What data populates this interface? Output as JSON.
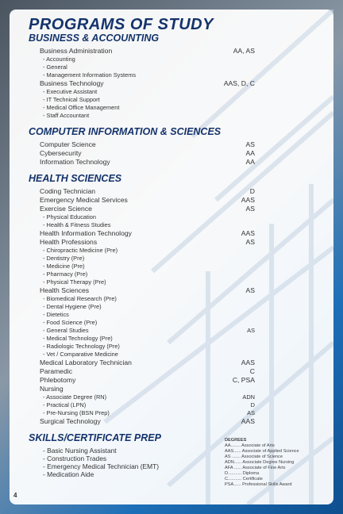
{
  "header": {
    "title": "PROGRAMS OF STUDY"
  },
  "sections": [
    {
      "heading": "BUSINESS & ACCOUNTING",
      "items": [
        {
          "name": "Business Administration",
          "degrees": "AA, AS",
          "sub": [
            {
              "name": "- Accounting"
            },
            {
              "name": "- General"
            },
            {
              "name": "- Management Information Systems"
            }
          ]
        },
        {
          "name": "Business Technology",
          "degrees": "AAS, D, C",
          "sub": [
            {
              "name": "- Executive Assistant"
            },
            {
              "name": "- IT Technical Support"
            },
            {
              "name": "- Medical Office Management"
            },
            {
              "name": "- Staff Accountant"
            }
          ]
        }
      ]
    },
    {
      "heading": "COMPUTER INFORMATION & SCIENCES",
      "items": [
        {
          "name": "Computer Science",
          "degrees": "AS"
        },
        {
          "name": "Cybersecurity",
          "degrees": "AA"
        },
        {
          "name": "Information Technology",
          "degrees": "AA"
        }
      ]
    },
    {
      "heading": "HEALTH SCIENCES",
      "items": [
        {
          "name": "Coding Technician",
          "degrees": "D"
        },
        {
          "name": "Emergency Medical Services",
          "degrees": "AAS"
        },
        {
          "name": "Exercise Science",
          "degrees": "AS",
          "sub": [
            {
              "name": "- Physical Education"
            },
            {
              "name": "- Health & Fitness Studies"
            }
          ]
        },
        {
          "name": "Health Information Technology",
          "degrees": "AAS"
        },
        {
          "name": "Health Professions",
          "degrees": "AS",
          "sub": [
            {
              "name": "- Chiropractic Medicine (Pre)"
            },
            {
              "name": "- Dentistry (Pre)"
            },
            {
              "name": "- Medicine (Pre)"
            },
            {
              "name": "- Pharmacy (Pre)"
            },
            {
              "name": "- Physical Therapy (Pre)"
            }
          ]
        },
        {
          "name": "Health Sciences",
          "degrees": "AS",
          "sub": [
            {
              "name": "- Biomedical Research (Pre)"
            },
            {
              "name": "- Dental Hygiene (Pre)"
            },
            {
              "name": "- Dietetics"
            },
            {
              "name": "- Food Science (Pre)"
            },
            {
              "name": "- General Studies",
              "degrees": "AS"
            },
            {
              "name": "- Medical Technology (Pre)"
            },
            {
              "name": "- Radiologic Technology (Pre)"
            },
            {
              "name": "- Vet / Comparative Medicine"
            }
          ]
        },
        {
          "name": "Medical Laboratory Technician",
          "degrees": "AAS"
        },
        {
          "name": "Paramedic",
          "degrees": "C"
        },
        {
          "name": "Phlebotomy",
          "degrees": "C, PSA"
        },
        {
          "name": "Nursing",
          "sub": [
            {
              "name": "- Associate Degree (RN)",
              "degrees": "ADN"
            },
            {
              "name": "- Practical (LPN)",
              "degrees": "D"
            },
            {
              "name": "- Pre-Nursing (BSN Prep)",
              "degrees": "AS"
            }
          ]
        },
        {
          "name": "Surgical Technology",
          "degrees": "AAS"
        }
      ]
    },
    {
      "heading": "SKILLS/CERTIFICATE PREP",
      "items": [
        {
          "name": "- Basic Nursing Assistant"
        },
        {
          "name": "- Construction Trades"
        },
        {
          "name": "- Emergency Medical Technician (EMT)"
        },
        {
          "name": "- Medication Aide"
        }
      ]
    }
  ],
  "legend": {
    "title": "DEGREES",
    "entries": [
      "AA........ Associate of Arts",
      "AAS...... Associate of Applied Science",
      "AS ....... Associate of Science",
      "ADN...... Associate Degree Nursing",
      "AFA ...... Associate of Fine Arts",
      "D........... Diploma",
      "C........... Certificate",
      "PSA...... Professional Skills Award"
    ]
  },
  "footer": {
    "page": "4"
  }
}
